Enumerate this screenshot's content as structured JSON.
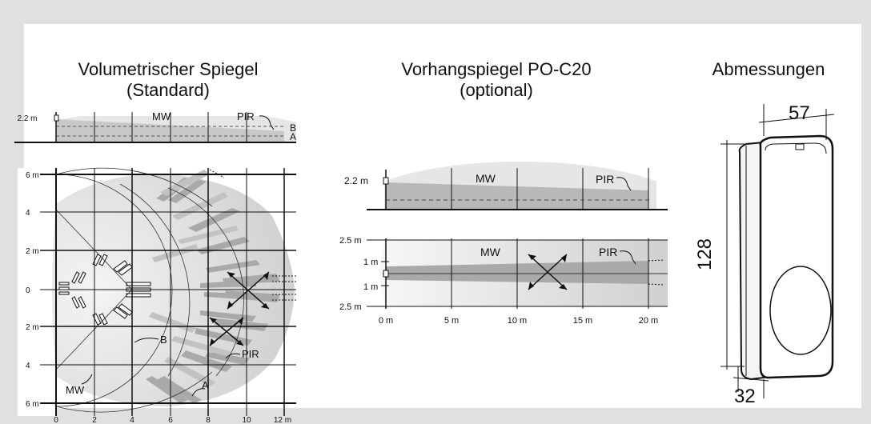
{
  "sections": {
    "volumetric": {
      "title_line1": "Volumetrischer Spiegel",
      "title_line2": "(Standard)",
      "side": {
        "height_label": "2.2 m",
        "mw": "MW",
        "pir": "PIR",
        "b": "B",
        "a": "A"
      },
      "top": {
        "y_labels": [
          "6 m",
          "4",
          "2 m",
          "0",
          "2 m",
          "4",
          "6 m"
        ],
        "x_labels": [
          "0",
          "2",
          "4",
          "6",
          "8",
          "10",
          "12 m"
        ],
        "b": "B",
        "pir": "PIR",
        "mw": "MW",
        "a": "A"
      }
    },
    "curtain": {
      "title_line1": "Vorhangspiegel PO-C20",
      "title_line2": "(optional)",
      "side": {
        "height_label": "2.2 m",
        "mw": "MW",
        "pir": "PIR"
      },
      "top": {
        "y_labels": [
          "2.5 m",
          "1 m",
          "1 m",
          "2.5 m"
        ],
        "x_labels": [
          "0 m",
          "5 m",
          "10 m",
          "15 m",
          "20 m"
        ],
        "mw": "MW",
        "pir": "PIR"
      }
    },
    "dimensions": {
      "title": "Abmessungen",
      "width": "57",
      "height": "128",
      "depth": "32"
    }
  },
  "colors": {
    "background": "#e0e0e0",
    "panel": "#ffffff",
    "zone": "#d2d2d2",
    "beam": "#a9a9a9"
  }
}
